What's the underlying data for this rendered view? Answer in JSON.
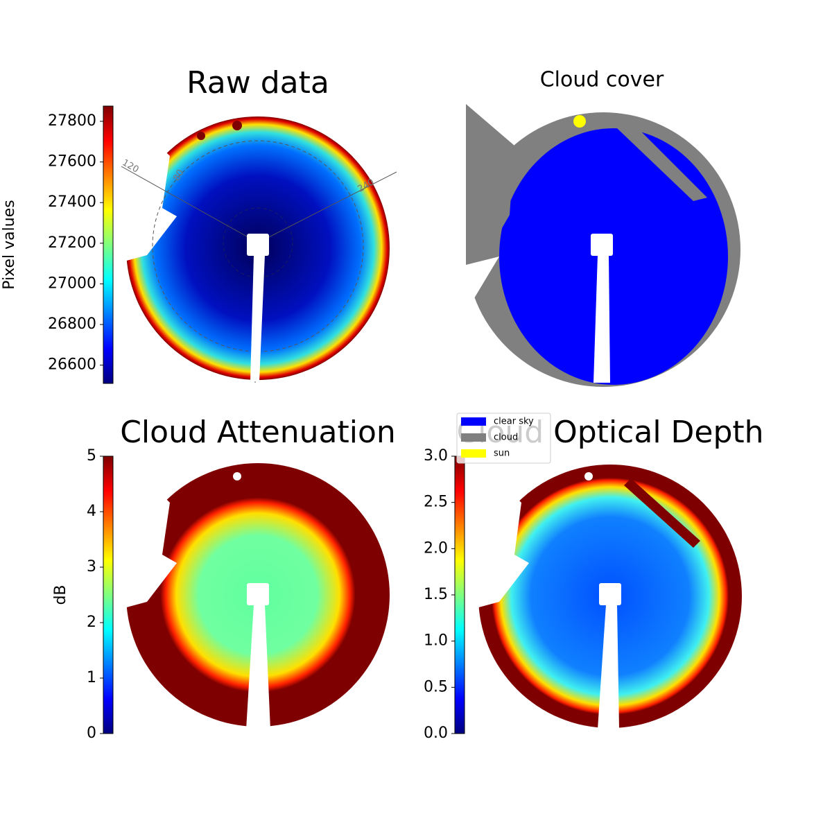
{
  "chart_data": [
    {
      "type": "image",
      "title": "Raw data",
      "colormap": "jet",
      "colorbar": {
        "label": "Pixel values",
        "lim": [
          26510,
          27875
        ],
        "ticks": [
          26600,
          26800,
          27000,
          27200,
          27400,
          27600,
          27800
        ]
      },
      "annotations": [
        "120",
        "80",
        "240"
      ]
    },
    {
      "type": "image",
      "title": "Cloud cover",
      "legend": [
        {
          "name": "clear sky",
          "color": "#0000ff"
        },
        {
          "name": "cloud",
          "color": "#808080"
        },
        {
          "name": "sun",
          "color": "#ffff00"
        }
      ]
    },
    {
      "type": "image",
      "title": "Cloud Attenuation",
      "colormap": "jet",
      "colorbar": {
        "label": "dB",
        "lim": [
          0,
          5
        ],
        "ticks": [
          0,
          1,
          2,
          3,
          4,
          5
        ]
      }
    },
    {
      "type": "image",
      "title": "Cloud Optical Depth",
      "colormap": "jet",
      "colorbar": {
        "lim": [
          0,
          3
        ],
        "ticks": [
          {
            "value": 0,
            "label": "0.0"
          },
          {
            "value": 0.5,
            "label": "0.5"
          },
          {
            "value": 1,
            "label": "1.0"
          },
          {
            "value": 1.5,
            "label": "1.5"
          },
          {
            "value": 2,
            "label": "2.0"
          },
          {
            "value": 2.5,
            "label": "2.5"
          },
          {
            "value": 3,
            "label": "3.0"
          }
        ]
      }
    }
  ]
}
